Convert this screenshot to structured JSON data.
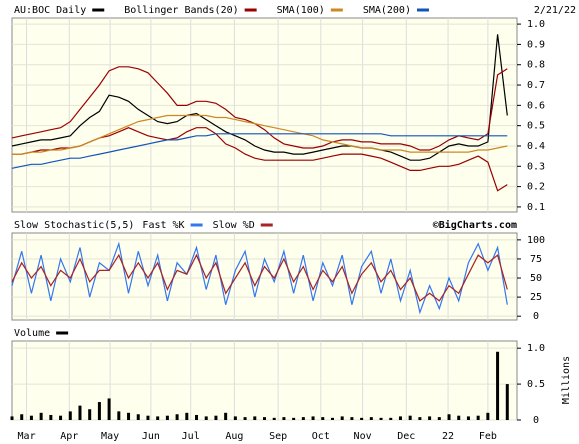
{
  "chart_data": [
    {
      "type": "line",
      "date": "2/21/22",
      "x": [
        0,
        1,
        2,
        3,
        4,
        5,
        6,
        7,
        8,
        9,
        10,
        11,
        12,
        13,
        14,
        15,
        16,
        17,
        18,
        19,
        20,
        21,
        22,
        23,
        24,
        25,
        26,
        27,
        28,
        29,
        30,
        31,
        32,
        33,
        34,
        35,
        36,
        37,
        38,
        39,
        40,
        41,
        42,
        43,
        44,
        45,
        46,
        47,
        48,
        49,
        50,
        51
      ],
      "xlim": [
        0,
        52
      ],
      "ylim": [
        0.075,
        1.03
      ],
      "yticks": [
        0.1,
        0.2,
        0.3,
        0.4,
        0.5,
        0.6,
        0.7,
        0.8,
        0.9,
        {
          "value": 1,
          "label": "1.0"
        }
      ],
      "series": [
        {
          "name": "AU:BOC Daily",
          "color": "#000000",
          "values": [
            0.4,
            0.41,
            0.42,
            0.43,
            0.43,
            0.44,
            0.45,
            0.5,
            0.54,
            0.57,
            0.65,
            0.64,
            0.62,
            0.58,
            0.55,
            0.52,
            0.51,
            0.52,
            0.55,
            0.56,
            0.53,
            0.5,
            0.47,
            0.45,
            0.43,
            0.4,
            0.38,
            0.37,
            0.37,
            0.36,
            0.36,
            0.37,
            0.38,
            0.39,
            0.4,
            0.4,
            0.39,
            0.39,
            0.38,
            0.37,
            0.35,
            0.33,
            0.33,
            0.34,
            0.37,
            0.4,
            0.41,
            0.4,
            0.4,
            0.42,
            0.95,
            0.55
          ]
        },
        {
          "name": "Bollinger Bands(20)",
          "color": "#990000",
          "upper": [
            0.44,
            0.45,
            0.46,
            0.47,
            0.48,
            0.49,
            0.52,
            0.58,
            0.64,
            0.7,
            0.77,
            0.79,
            0.79,
            0.78,
            0.76,
            0.71,
            0.66,
            0.6,
            0.6,
            0.62,
            0.62,
            0.61,
            0.58,
            0.54,
            0.53,
            0.51,
            0.48,
            0.44,
            0.41,
            0.4,
            0.39,
            0.39,
            0.4,
            0.42,
            0.43,
            0.43,
            0.42,
            0.42,
            0.41,
            0.41,
            0.41,
            0.4,
            0.38,
            0.38,
            0.4,
            0.43,
            0.45,
            0.44,
            0.43,
            0.46,
            0.75,
            0.78
          ],
          "lower": [
            0.36,
            0.36,
            0.37,
            0.38,
            0.38,
            0.39,
            0.39,
            0.4,
            0.42,
            0.44,
            0.45,
            0.47,
            0.49,
            0.47,
            0.45,
            0.44,
            0.43,
            0.44,
            0.47,
            0.49,
            0.49,
            0.46,
            0.41,
            0.39,
            0.36,
            0.34,
            0.33,
            0.33,
            0.33,
            0.33,
            0.33,
            0.33,
            0.34,
            0.35,
            0.36,
            0.36,
            0.36,
            0.35,
            0.34,
            0.32,
            0.3,
            0.28,
            0.28,
            0.29,
            0.3,
            0.3,
            0.31,
            0.33,
            0.35,
            0.32,
            0.18,
            0.21
          ]
        },
        {
          "name": "SMA(100)",
          "color": "#cc8822",
          "values": [
            0.36,
            0.36,
            0.37,
            0.37,
            0.38,
            0.38,
            0.39,
            0.4,
            0.42,
            0.44,
            0.46,
            0.48,
            0.5,
            0.52,
            0.53,
            0.54,
            0.55,
            0.55,
            0.55,
            0.55,
            0.55,
            0.54,
            0.54,
            0.53,
            0.52,
            0.51,
            0.5,
            0.49,
            0.48,
            0.47,
            0.46,
            0.45,
            0.43,
            0.42,
            0.41,
            0.4,
            0.39,
            0.39,
            0.38,
            0.38,
            0.38,
            0.37,
            0.37,
            0.37,
            0.37,
            0.37,
            0.37,
            0.37,
            0.38,
            0.38,
            0.39,
            0.4
          ]
        },
        {
          "name": "SMA(200)",
          "color": "#1155bb",
          "values": [
            0.29,
            0.3,
            0.31,
            0.31,
            0.32,
            0.33,
            0.34,
            0.34,
            0.35,
            0.36,
            0.37,
            0.38,
            0.39,
            0.4,
            0.41,
            0.42,
            0.43,
            0.43,
            0.44,
            0.45,
            0.45,
            0.46,
            0.46,
            0.46,
            0.46,
            0.46,
            0.46,
            0.46,
            0.46,
            0.46,
            0.46,
            0.46,
            0.46,
            0.46,
            0.46,
            0.46,
            0.46,
            0.46,
            0.46,
            0.45,
            0.45,
            0.45,
            0.45,
            0.45,
            0.45,
            0.45,
            0.45,
            0.45,
            0.45,
            0.45,
            0.45,
            0.45
          ]
        }
      ]
    },
    {
      "type": "line",
      "title": "Slow Stochastic(5,5)",
      "credit": "©BigCharts.com",
      "x": [
        0,
        1,
        2,
        3,
        4,
        5,
        6,
        7,
        8,
        9,
        10,
        11,
        12,
        13,
        14,
        15,
        16,
        17,
        18,
        19,
        20,
        21,
        22,
        23,
        24,
        25,
        26,
        27,
        28,
        29,
        30,
        31,
        32,
        33,
        34,
        35,
        36,
        37,
        38,
        39,
        40,
        41,
        42,
        43,
        44,
        45,
        46,
        47,
        48,
        49,
        50,
        51
      ],
      "xlim": [
        0,
        52
      ],
      "ylim": [
        -5,
        109
      ],
      "yticks": [
        0,
        25,
        50,
        75,
        100
      ],
      "series": [
        {
          "name": "Fast %K",
          "color": "#3377ee",
          "values": [
            40,
            85,
            30,
            80,
            20,
            75,
            45,
            90,
            25,
            70,
            60,
            95,
            30,
            85,
            40,
            80,
            20,
            70,
            55,
            90,
            35,
            80,
            15,
            60,
            85,
            25,
            75,
            45,
            85,
            30,
            80,
            20,
            70,
            40,
            80,
            15,
            65,
            85,
            30,
            75,
            20,
            60,
            5,
            40,
            10,
            50,
            20,
            70,
            95,
            60,
            90,
            15
          ]
        },
        {
          "name": "Slow %D",
          "color": "#aa2222",
          "values": [
            45,
            70,
            50,
            65,
            40,
            60,
            50,
            75,
            45,
            60,
            60,
            80,
            50,
            70,
            50,
            70,
            35,
            60,
            55,
            80,
            50,
            70,
            30,
            50,
            70,
            40,
            65,
            50,
            75,
            45,
            65,
            35,
            60,
            45,
            65,
            30,
            55,
            70,
            45,
            60,
            35,
            50,
            20,
            30,
            20,
            40,
            30,
            55,
            80,
            70,
            80,
            35
          ]
        }
      ]
    },
    {
      "type": "bar",
      "title": "Volume",
      "ylabel": "Millions",
      "color": "#000000",
      "x": [
        0,
        1,
        2,
        3,
        4,
        5,
        6,
        7,
        8,
        9,
        10,
        11,
        12,
        13,
        14,
        15,
        16,
        17,
        18,
        19,
        20,
        21,
        22,
        23,
        24,
        25,
        26,
        27,
        28,
        29,
        30,
        31,
        32,
        33,
        34,
        35,
        36,
        37,
        38,
        39,
        40,
        41,
        42,
        43,
        44,
        45,
        46,
        47,
        48,
        49,
        50,
        51
      ],
      "values": [
        0.05,
        0.08,
        0.06,
        0.1,
        0.07,
        0.06,
        0.12,
        0.2,
        0.15,
        0.25,
        0.3,
        0.12,
        0.1,
        0.08,
        0.06,
        0.05,
        0.06,
        0.08,
        0.1,
        0.07,
        0.05,
        0.06,
        0.1,
        0.05,
        0.04,
        0.05,
        0.04,
        0.03,
        0.04,
        0.03,
        0.04,
        0.05,
        0.04,
        0.03,
        0.05,
        0.04,
        0.03,
        0.04,
        0.03,
        0.03,
        0.05,
        0.06,
        0.04,
        0.05,
        0.04,
        0.08,
        0.06,
        0.05,
        0.06,
        0.1,
        0.95,
        0.5
      ],
      "xlim": [
        0,
        52
      ],
      "ylim": [
        0,
        1.1
      ],
      "yticks": [
        0,
        0.5,
        {
          "value": 1,
          "label": "1.0"
        }
      ],
      "xticks": [
        {
          "value": 1.5,
          "label": "Mar"
        },
        {
          "value": 5.9,
          "label": "Apr"
        },
        {
          "value": 10.1,
          "label": "May"
        },
        {
          "value": 14.3,
          "label": "Jun"
        },
        {
          "value": 18.4,
          "label": "Jul"
        },
        {
          "value": 22.9,
          "label": "Aug"
        },
        {
          "value": 27.4,
          "label": "Sep"
        },
        {
          "value": 31.8,
          "label": "Oct"
        },
        {
          "value": 36.1,
          "label": "Nov"
        },
        {
          "value": 40.6,
          "label": "Dec"
        },
        {
          "value": 44.9,
          "label": "22"
        },
        {
          "value": 49,
          "label": "Feb"
        }
      ],
      "grid": true
    }
  ]
}
